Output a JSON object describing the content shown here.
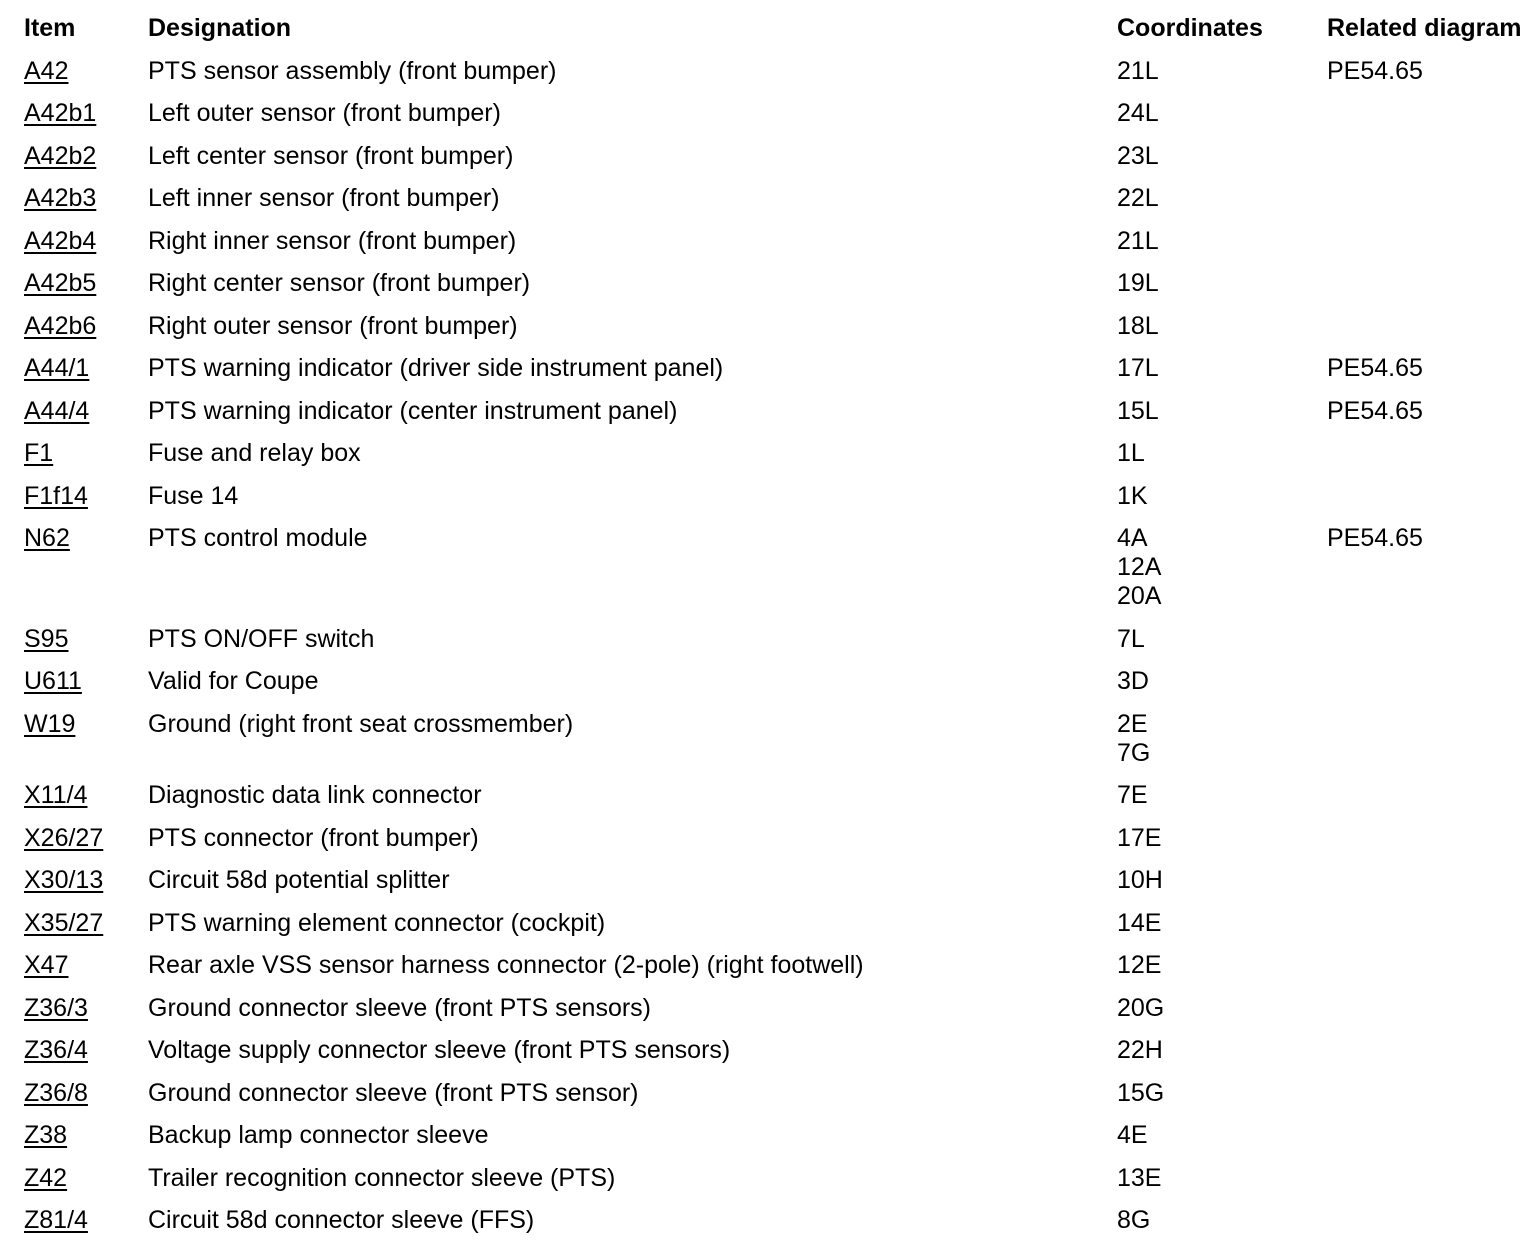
{
  "colors": {
    "background": "#ffffff",
    "text": "#000000"
  },
  "table": {
    "headers": {
      "item": "Item",
      "designation": "Designation",
      "coordinates": "Coordinates",
      "related": "Related diagram"
    },
    "rows": [
      {
        "item": "A42",
        "designation": "PTS sensor assembly (front bumper)",
        "coordinates": [
          "21L"
        ],
        "related": "PE54.65"
      },
      {
        "item": "A42b1",
        "designation": "Left outer sensor (front bumper)",
        "coordinates": [
          "24L"
        ],
        "related": ""
      },
      {
        "item": "A42b2",
        "designation": "Left center sensor (front bumper)",
        "coordinates": [
          "23L"
        ],
        "related": ""
      },
      {
        "item": "A42b3",
        "designation": "Left inner sensor (front bumper)",
        "coordinates": [
          "22L"
        ],
        "related": ""
      },
      {
        "item": "A42b4",
        "designation": "Right inner sensor (front bumper)",
        "coordinates": [
          "21L"
        ],
        "related": ""
      },
      {
        "item": "A42b5",
        "designation": "Right center sensor (front bumper)",
        "coordinates": [
          "19L"
        ],
        "related": ""
      },
      {
        "item": "A42b6",
        "designation": "Right outer sensor (front bumper)",
        "coordinates": [
          "18L"
        ],
        "related": ""
      },
      {
        "item": "A44/1",
        "designation": "PTS warning indicator (driver side instrument panel)",
        "coordinates": [
          "17L"
        ],
        "related": "PE54.65"
      },
      {
        "item": "A44/4",
        "designation": "PTS warning indicator (center instrument panel)",
        "coordinates": [
          "15L"
        ],
        "related": "PE54.65"
      },
      {
        "item": "F1",
        "designation": "Fuse and relay box",
        "coordinates": [
          "1L"
        ],
        "related": ""
      },
      {
        "item": "F1f14",
        "designation": "Fuse 14",
        "coordinates": [
          "1K"
        ],
        "related": ""
      },
      {
        "item": "N62",
        "designation": "PTS control module",
        "coordinates": [
          "4A",
          "12A",
          "20A"
        ],
        "related": "PE54.65"
      },
      {
        "item": "S95",
        "designation": "PTS ON/OFF switch",
        "coordinates": [
          "7L"
        ],
        "related": ""
      },
      {
        "item": "U611",
        "designation": "Valid for Coupe",
        "coordinates": [
          "3D"
        ],
        "related": ""
      },
      {
        "item": "W19",
        "designation": "Ground (right front seat crossmember)",
        "coordinates": [
          "2E",
          "7G"
        ],
        "related": ""
      },
      {
        "item": "X11/4",
        "designation": "Diagnostic data link connector",
        "coordinates": [
          "7E"
        ],
        "related": ""
      },
      {
        "item": "X26/27",
        "designation": "PTS connector (front bumper)",
        "coordinates": [
          "17E"
        ],
        "related": ""
      },
      {
        "item": "X30/13",
        "designation": "Circuit 58d potential splitter",
        "coordinates": [
          "10H"
        ],
        "related": ""
      },
      {
        "item": "X35/27",
        "designation": "PTS warning element connector (cockpit)",
        "coordinates": [
          "14E"
        ],
        "related": ""
      },
      {
        "item": "X47",
        "designation": "Rear axle VSS sensor harness connector (2-pole) (right footwell)",
        "coordinates": [
          "12E"
        ],
        "related": ""
      },
      {
        "item": "Z36/3",
        "designation": "Ground connector sleeve (front PTS sensors)",
        "coordinates": [
          "20G"
        ],
        "related": ""
      },
      {
        "item": "Z36/4",
        "designation": "Voltage supply connector sleeve (front PTS sensors)",
        "coordinates": [
          "22H"
        ],
        "related": ""
      },
      {
        "item": "Z36/8",
        "designation": "Ground connector sleeve (front PTS sensor)",
        "coordinates": [
          "15G"
        ],
        "related": ""
      },
      {
        "item": "Z38",
        "designation": "Backup lamp connector sleeve",
        "coordinates": [
          "4E"
        ],
        "related": ""
      },
      {
        "item": "Z42",
        "designation": "Trailer recognition connector sleeve (PTS)",
        "coordinates": [
          "13E"
        ],
        "related": ""
      },
      {
        "item": "Z81/4",
        "designation": "Circuit 58d connector sleeve (FFS)",
        "coordinates": [
          "8G"
        ],
        "related": ""
      }
    ]
  }
}
